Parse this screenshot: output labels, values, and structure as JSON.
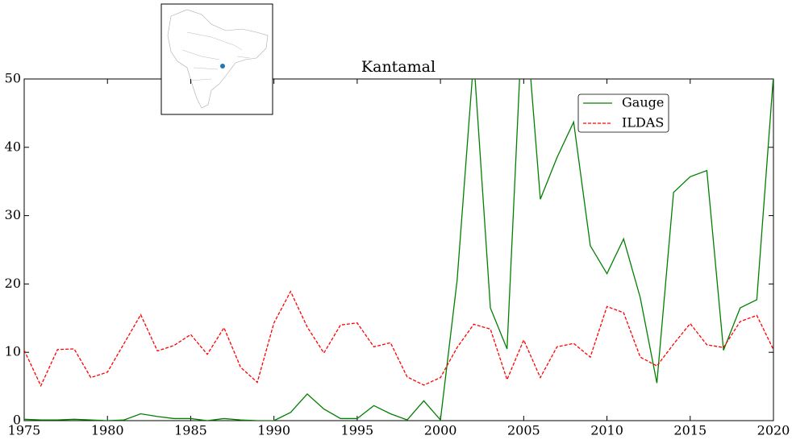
{
  "chart_data": {
    "type": "line",
    "title": "Kantamal",
    "x": [
      1975,
      1976,
      1977,
      1978,
      1979,
      1980,
      1981,
      1982,
      1983,
      1984,
      1985,
      1986,
      1987,
      1988,
      1989,
      1990,
      1991,
      1992,
      1993,
      1994,
      1995,
      1996,
      1997,
      1998,
      1999,
      2000,
      2001,
      2002,
      2003,
      2004,
      2005,
      2006,
      2007,
      2008,
      2009,
      2010,
      2011,
      2012,
      2013,
      2014,
      2015,
      2016,
      2017,
      2018,
      2019,
      2020
    ],
    "series": [
      {
        "name": "Gauge",
        "color": "#008000",
        "dash": "solid",
        "values": [
          0.2,
          0.1,
          0.1,
          0.2,
          0.1,
          0.0,
          0.1,
          1.0,
          0.6,
          0.3,
          0.3,
          0.0,
          0.3,
          0.1,
          0.0,
          0.0,
          1.2,
          3.9,
          1.7,
          0.3,
          0.3,
          2.2,
          1.0,
          0.1,
          2.9,
          0.1,
          20.5,
          53,
          16.5,
          10.5,
          63,
          32.4,
          38.5,
          43.7,
          25.6,
          21.5,
          26.6,
          18,
          5.5,
          33.4,
          35.7,
          36.6,
          10.3,
          16.5,
          17.7,
          50.5
        ]
      },
      {
        "name": "ILDAS",
        "color": "#ff0000",
        "dash": "dashed",
        "values": [
          10.3,
          5.1,
          10.4,
          10.5,
          6.3,
          7.1,
          11.3,
          15.5,
          10.2,
          11.0,
          12.6,
          9.7,
          13.6,
          7.8,
          5.6,
          14.3,
          18.9,
          13.7,
          9.9,
          14.0,
          14.3,
          10.8,
          11.4,
          6.4,
          5.2,
          6.3,
          10.7,
          14.1,
          13.4,
          6.0,
          11.8,
          6.3,
          10.8,
          11.3,
          9.3,
          16.7,
          15.8,
          9.3,
          8.0,
          11.2,
          14.2,
          11.1,
          10.7,
          14.5,
          15.4,
          10.4
        ]
      }
    ],
    "xlim": [
      1975,
      2020
    ],
    "xticks": [
      1975,
      1980,
      1985,
      1990,
      1995,
      2000,
      2005,
      2010,
      2015,
      2020
    ],
    "ylim": [
      0,
      50
    ],
    "yticks": [
      0,
      10,
      20,
      30,
      40,
      50
    ],
    "legend": "upper right"
  }
}
